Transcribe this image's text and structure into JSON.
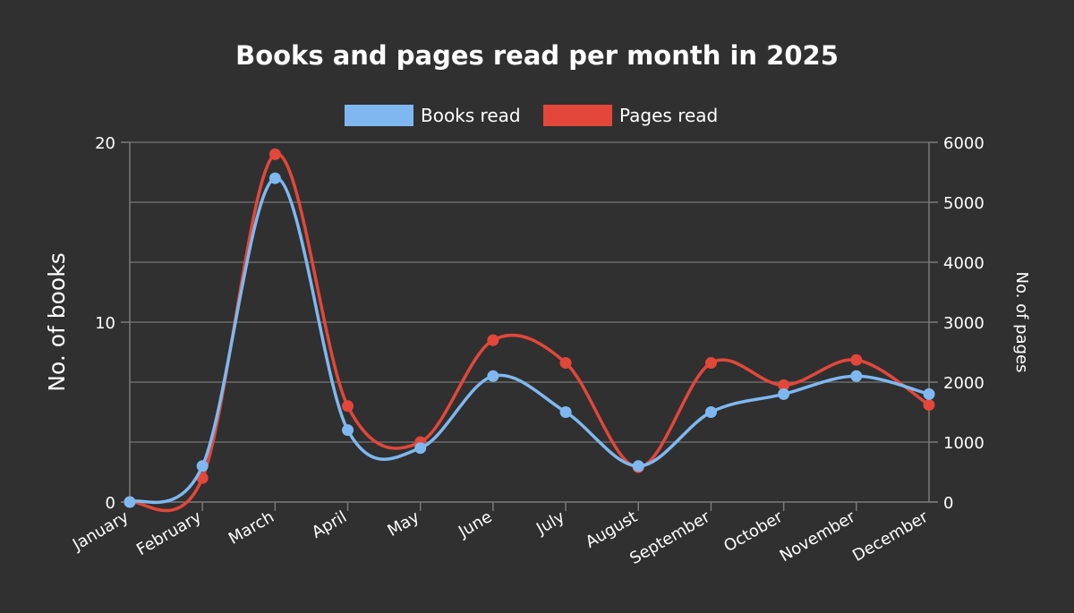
{
  "chart_data": {
    "type": "line",
    "title": "Books and pages read per month in 2025",
    "categories": [
      "January",
      "February",
      "March",
      "April",
      "May",
      "June",
      "July",
      "August",
      "September",
      "October",
      "November",
      "December"
    ],
    "series": [
      {
        "name": "Books read",
        "axis": "left",
        "color": "#7fb8f0",
        "values": [
          0,
          2,
          18,
          4,
          3,
          7,
          5,
          2,
          5,
          6,
          7,
          6
        ]
      },
      {
        "name": "Pages read",
        "axis": "right",
        "color": "#e2473a",
        "values": [
          0,
          400,
          5800,
          1600,
          1000,
          2700,
          2320,
          580,
          2320,
          1950,
          2370,
          1620
        ]
      }
    ],
    "y_left": {
      "label": "No. of books",
      "ylim": [
        0,
        20
      ],
      "ticks": [
        "0",
        "10",
        "20"
      ]
    },
    "y_right": {
      "label": "No. of pages",
      "ylim": [
        0,
        6000
      ],
      "ticks": [
        "0",
        "1000",
        "2000",
        "3000",
        "4000",
        "5000",
        "6000"
      ]
    },
    "grid": true,
    "legend_position": "top-center",
    "smooth": true
  }
}
